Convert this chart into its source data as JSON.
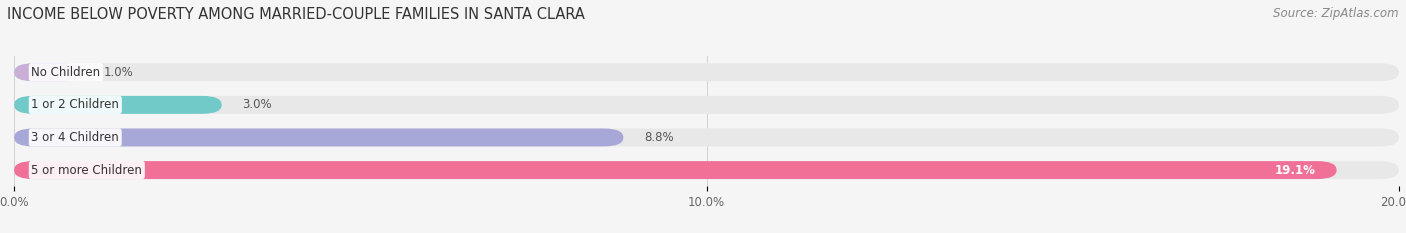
{
  "title": "INCOME BELOW POVERTY AMONG MARRIED-COUPLE FAMILIES IN SANTA CLARA",
  "source": "Source: ZipAtlas.com",
  "categories": [
    "No Children",
    "1 or 2 Children",
    "3 or 4 Children",
    "5 or more Children"
  ],
  "values": [
    1.0,
    3.0,
    8.8,
    19.1
  ],
  "bar_colors": [
    "#c9afd6",
    "#72cac8",
    "#a8a8d8",
    "#f07098"
  ],
  "bar_bg_color": "#e8e8e8",
  "background_color": "#f5f5f5",
  "xlim": [
    0,
    20.0
  ],
  "xticks": [
    0.0,
    10.0,
    20.0
  ],
  "xticklabels": [
    "0.0%",
    "10.0%",
    "20.0%"
  ],
  "title_fontsize": 10.5,
  "label_fontsize": 8.5,
  "value_fontsize": 8.5,
  "source_fontsize": 8.5,
  "value_inside_threshold": 15.0,
  "value_labels": [
    "1.0%",
    "3.0%",
    "8.8%",
    "19.1%"
  ]
}
